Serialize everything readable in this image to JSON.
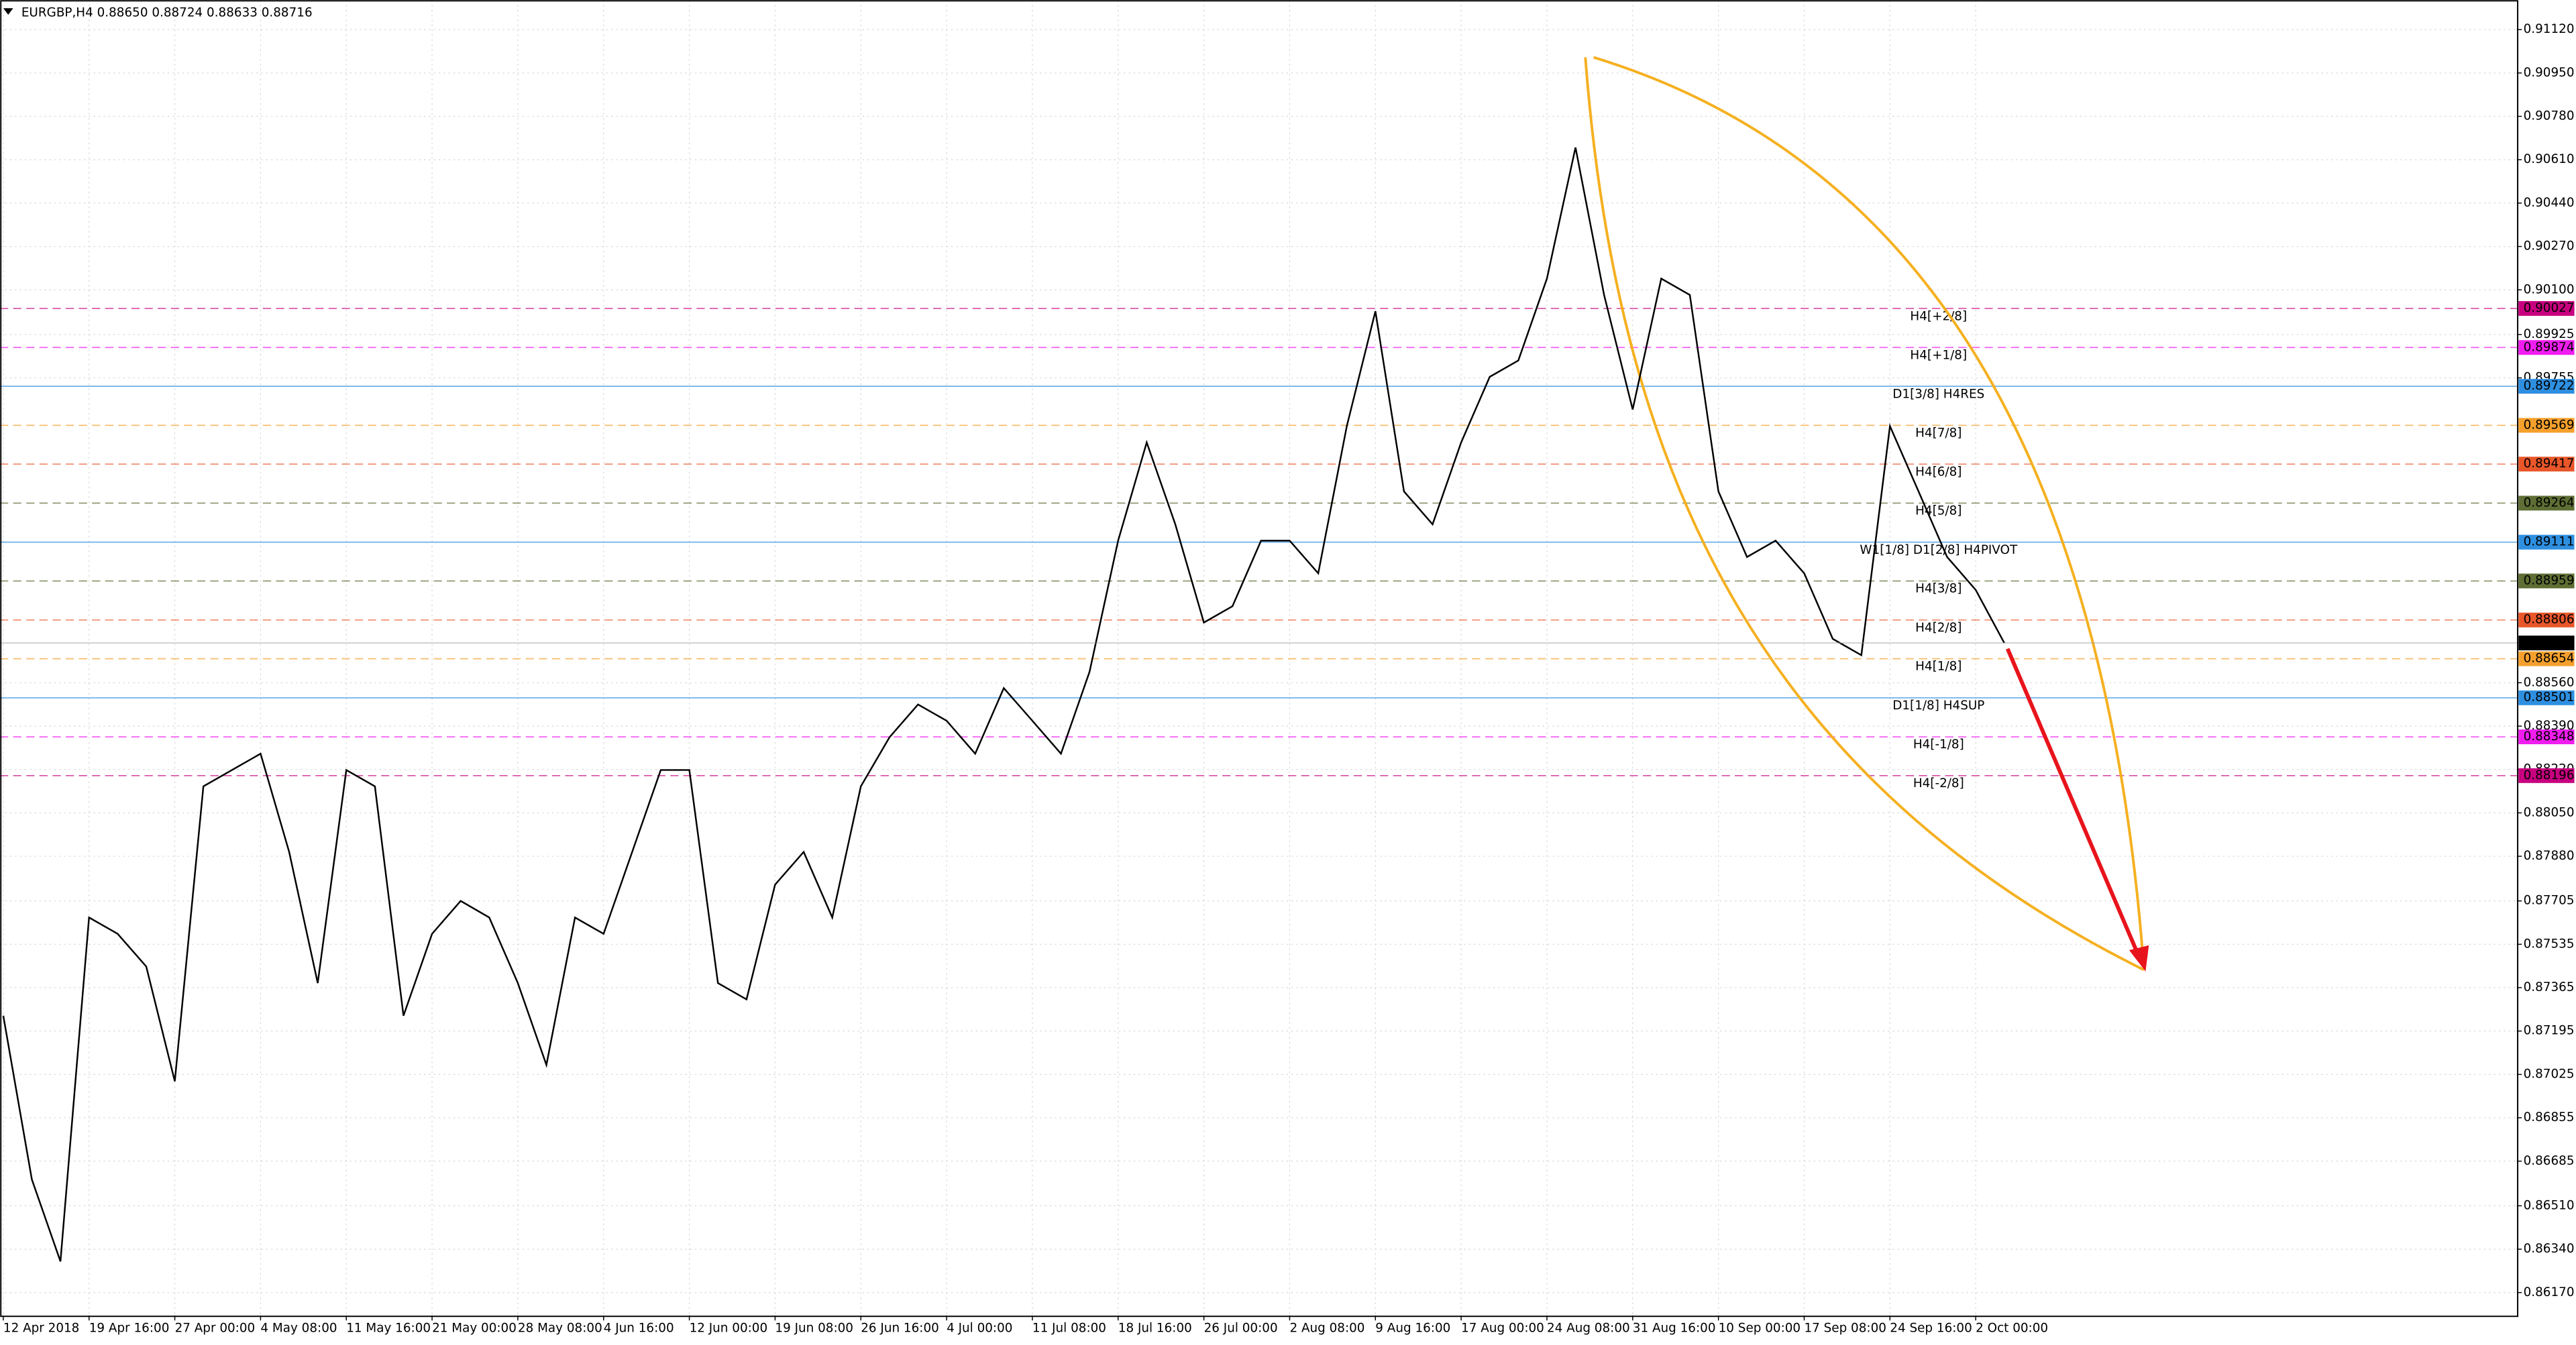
{
  "chart_data": {
    "type": "line",
    "title": "EURGBP,H4  0.88650 0.88724 0.88633 0.88716",
    "categories": [
      "12 Apr 2018",
      null,
      null,
      "19 Apr 16:00",
      null,
      null,
      "27 Apr 00:00",
      null,
      null,
      "4 May 08:00",
      null,
      null,
      "11 May 16:00",
      null,
      null,
      "21 May 00:00",
      null,
      null,
      "28 May 08:00",
      null,
      null,
      "4 Jun 16:00",
      null,
      null,
      "12 Jun 00:00",
      null,
      null,
      "19 Jun 08:00",
      null,
      null,
      "26 Jun 16:00",
      null,
      null,
      "4 Jul 00:00",
      null,
      null,
      "11 Jul 08:00",
      null,
      null,
      "18 Jul 16:00",
      null,
      null,
      "26 Jul 00:00",
      null,
      null,
      "2 Aug 08:00",
      null,
      null,
      "9 Aug 16:00",
      null,
      null,
      "17 Aug 00:00",
      null,
      null,
      "24 Aug 08:00",
      null,
      null,
      "31 Aug 16:00",
      null,
      null,
      "10 Sep 00:00",
      null,
      null,
      "17 Sep 08:00",
      null,
      null,
      "24 Sep 16:00",
      null,
      null,
      "2 Oct 00:00",
      null
    ],
    "series": [
      {
        "name": "EURGBP",
        "color": "#000000",
        "values": [
          0.87255,
          0.86613,
          0.86292,
          0.8764,
          0.87576,
          0.87448,
          0.86998,
          0.88154,
          0.88218,
          0.88282,
          0.87897,
          0.87383,
          0.88218,
          0.88154,
          0.87255,
          0.87576,
          0.87705,
          0.8764,
          0.87383,
          0.87062,
          0.8764,
          0.87576,
          0.87897,
          0.88218,
          0.88218,
          0.87383,
          0.87319,
          0.87769,
          0.87897,
          0.8764,
          0.88154,
          0.88346,
          0.88475,
          0.88411,
          0.88282,
          0.88539,
          0.88411,
          0.88282,
          0.88603,
          0.89117,
          0.89502,
          0.89181,
          0.88796,
          0.8886,
          0.89117,
          0.89117,
          0.88989,
          0.89566,
          0.90016,
          0.8931,
          0.89181,
          0.89502,
          0.89759,
          0.89823,
          0.90144,
          0.90658,
          0.9008,
          0.89631,
          0.90144,
          0.9008,
          0.8931,
          0.89053,
          0.89117,
          0.88989,
          0.88732,
          0.88668,
          0.89566,
          0.8931,
          0.89053,
          0.88924,
          0.88716
        ]
      }
    ],
    "ylim": [
      0.8608,
      0.91236
    ],
    "yticks": [
      {
        "value": 0.9112,
        "label": "0.91120"
      },
      {
        "value": 0.9095,
        "label": "0.90950"
      },
      {
        "value": 0.9078,
        "label": "0.90780"
      },
      {
        "value": 0.9061,
        "label": "0.90610"
      },
      {
        "value": 0.9044,
        "label": "0.90440"
      },
      {
        "value": 0.9027,
        "label": "0.90270"
      },
      {
        "value": 0.901,
        "label": "0.90100"
      },
      0.89925,
      0.89755,
      {
        "value": 0.8856,
        "label": "0.88560"
      },
      {
        "value": 0.8839,
        "label": "0.88390"
      },
      {
        "value": 0.8822,
        "label": "0.88220"
      },
      {
        "value": 0.8805,
        "label": "0.88050"
      },
      {
        "value": 0.8788,
        "label": "0.87880"
      },
      0.87705,
      0.87535,
      0.87365,
      0.87195,
      0.87025,
      0.86855,
      0.86685,
      {
        "value": 0.8651,
        "label": "0.86510"
      },
      {
        "value": 0.8634,
        "label": "0.86340"
      },
      {
        "value": 0.8617,
        "label": "0.86170"
      }
    ],
    "grid": true,
    "levels": [
      {
        "label": "H4[+2/8]",
        "value": 0.90027,
        "color": "#c8007f",
        "style": "dashed"
      },
      {
        "label": "H4[+1/8]",
        "value": 0.89874,
        "color": "#f01cf0",
        "style": "dashed"
      },
      {
        "label": "D1[3/8] H4RES",
        "value": 0.89722,
        "color": "#2e8fe0",
        "style": "solid"
      },
      {
        "label": "H4[7/8]",
        "value": 0.89569,
        "color": "#f5a02c",
        "style": "dashed"
      },
      {
        "label": "H4[6/8]",
        "value": 0.89417,
        "color": "#e8562a",
        "style": "dashed"
      },
      {
        "label": "H4[5/8]",
        "value": 0.89264,
        "color": "#5e6e34",
        "style": "dashed"
      },
      {
        "label": "W1[1/8] D1[2/8] H4PIVOT",
        "value": 0.89111,
        "color": "#2e8fe0",
        "style": "solid"
      },
      {
        "label": "H4[3/8]",
        "value": 0.88959,
        "color": "#5e6e34",
        "style": "dashed"
      },
      {
        "label": "H4[2/8]",
        "value": 0.88806,
        "color": "#e8562a",
        "style": "dashed"
      },
      {
        "label": "H4[1/8]",
        "value": 0.88654,
        "color": "#f5a02c",
        "style": "dashed"
      },
      {
        "label": "D1[1/8] H4SUP",
        "value": 0.88501,
        "color": "#2e8fe0",
        "style": "solid"
      },
      {
        "label": "H4[-1/8]",
        "value": 0.88348,
        "color": "#f01cf0",
        "style": "dashed"
      },
      {
        "label": "H4[-2/8]",
        "value": 0.88196,
        "color": "#c8007f",
        "style": "dashed"
      }
    ]
  }
}
